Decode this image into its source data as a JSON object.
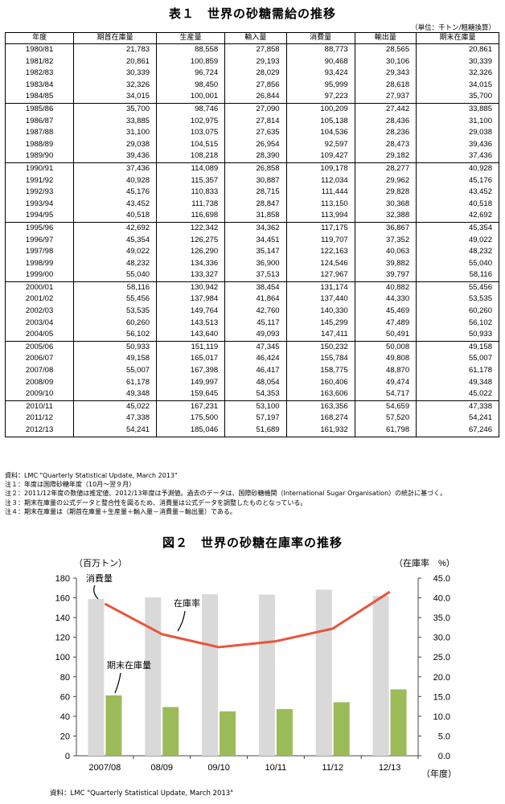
{
  "table1": {
    "title": "表１　世界の砂糖需給の推移",
    "unit": "（単位：千トン/粗糖換算）",
    "columns": [
      "年度",
      "期首在庫量",
      "生産量",
      "輸入量",
      "消費量",
      "輸出量",
      "期末在庫量"
    ],
    "rows": [
      [
        "1980/81",
        "21,783",
        "88,558",
        "27,858",
        "88,773",
        "28,565",
        "20,861"
      ],
      [
        "1981/82",
        "20,861",
        "100,859",
        "29,193",
        "90,468",
        "30,106",
        "30,339"
      ],
      [
        "1982/83",
        "30,339",
        "96,724",
        "28,029",
        "93,424",
        "29,343",
        "32,326"
      ],
      [
        "1983/84",
        "32,326",
        "98,450",
        "27,856",
        "95,999",
        "28,618",
        "34,015"
      ],
      [
        "1984/85",
        "34,015",
        "100,001",
        "26,844",
        "97,223",
        "27,937",
        "35,700"
      ],
      [
        "1985/86",
        "35,700",
        "98,746",
        "27,090",
        "100,209",
        "27,442",
        "33,885"
      ],
      [
        "1986/87",
        "33,885",
        "102,975",
        "27,814",
        "105,138",
        "28,436",
        "31,100"
      ],
      [
        "1987/88",
        "31,100",
        "103,075",
        "27,635",
        "104,536",
        "28,236",
        "29,038"
      ],
      [
        "1988/89",
        "29,038",
        "104,515",
        "26,954",
        "92,597",
        "28,473",
        "39,436"
      ],
      [
        "1989/90",
        "39,436",
        "108,218",
        "28,390",
        "109,427",
        "29,182",
        "37,436"
      ],
      [
        "1990/91",
        "37,436",
        "114,089",
        "26,858",
        "109,178",
        "28,277",
        "40,928"
      ],
      [
        "1991/92",
        "40,928",
        "115,357",
        "30,887",
        "112,034",
        "29,962",
        "45,176"
      ],
      [
        "1992/93",
        "45,176",
        "110,833",
        "28,715",
        "111,444",
        "29,828",
        "43,452"
      ],
      [
        "1993/94",
        "43,452",
        "111,738",
        "28,847",
        "113,150",
        "30,368",
        "40,518"
      ],
      [
        "1994/95",
        "40,518",
        "116,698",
        "31,858",
        "113,994",
        "32,388",
        "42,692"
      ],
      [
        "1995/96",
        "42,692",
        "122,342",
        "34,362",
        "117,175",
        "36,867",
        "45,354"
      ],
      [
        "1996/97",
        "45,354",
        "126,275",
        "34,451",
        "119,707",
        "37,352",
        "49,022"
      ],
      [
        "1997/98",
        "49,022",
        "126,290",
        "35,147",
        "122,163",
        "40,063",
        "48,232"
      ],
      [
        "1998/99",
        "48,232",
        "134,336",
        "36,900",
        "124,546",
        "39,882",
        "55,040"
      ],
      [
        "1999/00",
        "55,040",
        "133,327",
        "37,513",
        "127,967",
        "39,797",
        "58,116"
      ],
      [
        "2000/01",
        "58,116",
        "130,942",
        "38,454",
        "131,174",
        "40,882",
        "55,456"
      ],
      [
        "2001/02",
        "55,456",
        "137,984",
        "41,864",
        "137,440",
        "44,330",
        "53,535"
      ],
      [
        "2002/03",
        "53,535",
        "149,764",
        "42,760",
        "140,330",
        "45,469",
        "60,260"
      ],
      [
        "2003/04",
        "60,260",
        "143,513",
        "45,117",
        "145,299",
        "47,489",
        "56,102"
      ],
      [
        "2004/05",
        "56,102",
        "143,640",
        "49,093",
        "147,411",
        "50,491",
        "50,933"
      ],
      [
        "2005/06",
        "50,933",
        "151,119",
        "47,345",
        "150,232",
        "50,008",
        "49,158"
      ],
      [
        "2006/07",
        "49,158",
        "165,017",
        "46,424",
        "155,784",
        "49,808",
        "55,007"
      ],
      [
        "2007/08",
        "55,007",
        "167,398",
        "46,417",
        "158,775",
        "48,870",
        "61,178"
      ],
      [
        "2008/09",
        "61,178",
        "149,997",
        "48,054",
        "160,406",
        "49,474",
        "49,348"
      ],
      [
        "2009/10",
        "49,348",
        "159,645",
        "54,353",
        "163,606",
        "54,717",
        "45,022"
      ],
      [
        "2010/11",
        "45,022",
        "167,231",
        "53,100",
        "163,356",
        "54,659",
        "47,338"
      ],
      [
        "2011/12",
        "47,338",
        "175,500",
        "57,197",
        "168,274",
        "57,520",
        "54,241"
      ],
      [
        "2012/13",
        "54,241",
        "185,046",
        "51,689",
        "161,932",
        "61,798",
        "67,246"
      ]
    ],
    "notes": [
      "資料：LMC \"Quarterly Statistical Update, March 2013\"",
      "注１：年度は国際砂糖年度（10月～翌９月）",
      "注２：2011/12年度の数値は推定値、2012/13年度は予測値。過去のデータは、国際砂糖機関（International Sugar Organisation）の統計に基づく。",
      "注３：期末在庫量の公式データと整合性を図るため、消費量は公式データを調整したものとなっている。",
      "注４：期末在庫量は（期首在庫量＋生産量＋輸入量－消費量－輸出量）である。"
    ]
  },
  "figure2": {
    "title": "図２　世界の砂糖在庫率の推移",
    "source": "資料：LMC \"Quarterly Statistical Update, March 2013\""
  },
  "chart_data": {
    "type": "bar",
    "categories": [
      "2007/08",
      "08/09",
      "09/10",
      "10/11",
      "11/12",
      "12/13"
    ],
    "series": [
      {
        "name": "消費量",
        "type": "bar",
        "axis": "left",
        "color": "#d9d9d9",
        "values": [
          158.775,
          160.406,
          163.606,
          163.356,
          168.274,
          161.932
        ]
      },
      {
        "name": "期末在庫量",
        "type": "bar",
        "axis": "left",
        "color": "#9bbb59",
        "values": [
          61.178,
          49.348,
          45.022,
          47.338,
          54.241,
          67.246
        ]
      },
      {
        "name": "在庫率",
        "type": "line",
        "axis": "right",
        "color": "#e8553a",
        "values": [
          38.5,
          30.8,
          27.5,
          29.0,
          32.2,
          41.5
        ]
      }
    ],
    "ylabel": "（百万トン）",
    "y2label": "（在庫率　%）",
    "xlabel": "（年度）",
    "ylim": [
      0,
      180
    ],
    "y2lim": [
      0,
      45
    ],
    "yticks": [
      "0",
      "20",
      "40",
      "60",
      "80",
      "100",
      "120",
      "140",
      "160",
      "180"
    ],
    "y2ticks": [
      "0.0",
      "5.0",
      "10.0",
      "15.0",
      "20.0",
      "25.0",
      "30.0",
      "35.0",
      "40.0",
      "45.0"
    ],
    "annotations": [
      "消費量",
      "在庫率",
      "期末在庫量"
    ],
    "grid": false
  }
}
